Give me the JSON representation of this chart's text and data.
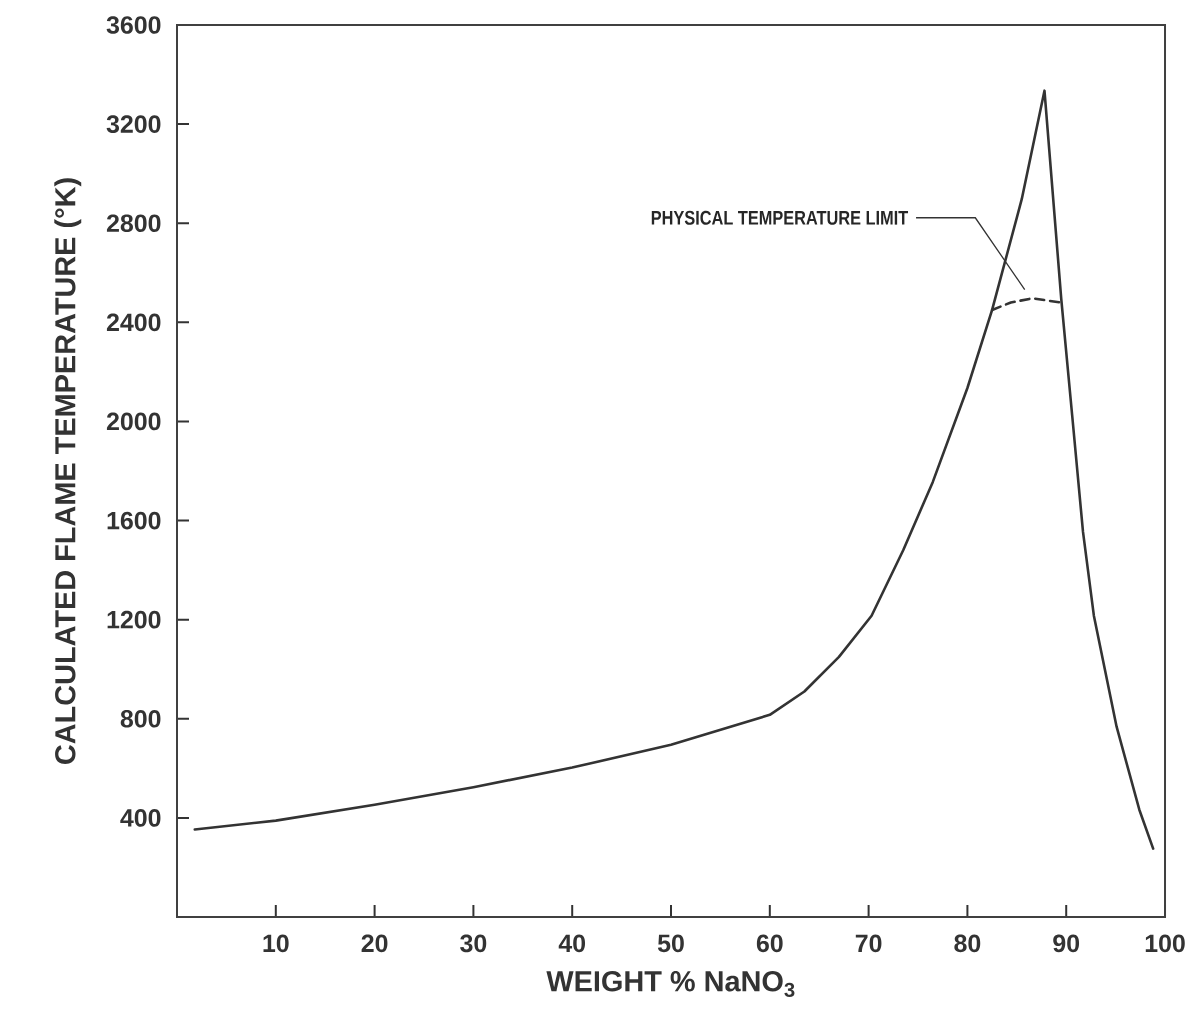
{
  "chart_data": {
    "type": "line",
    "xlabel": "WEIGHT % NaNO$_{3}$",
    "ylabel": "CALCULATED FLAME TEMPERATURE (°K)",
    "xlim": [
      0,
      100
    ],
    "ylim": [
      0,
      3600
    ],
    "xticks": [
      10,
      20,
      30,
      40,
      50,
      60,
      70,
      80,
      90,
      100
    ],
    "yticks": [
      400,
      800,
      1200,
      1600,
      2000,
      2400,
      2800,
      3200,
      3600
    ],
    "grid": false,
    "marker": "none",
    "series": [
      {
        "color": "#333333",
        "line_style": "solid",
        "x": [
          1.8,
          10,
          20,
          30,
          40,
          50,
          60,
          63.5,
          67,
          70.3,
          73.5,
          76.5,
          80,
          82.5,
          85.5,
          87.8,
          89.5,
          90.6,
          91.7,
          92.8,
          95.1,
          97.4,
          98.8
        ],
        "values": [
          353,
          389,
          453,
          524,
          603,
          695,
          816,
          910,
          1050,
          1216,
          1480,
          1756,
          2135,
          2450,
          2897,
          3335,
          2494,
          2026,
          1554,
          1216,
          768,
          433,
          276
        ]
      },
      {
        "color": "#333333",
        "line_style": "dashed",
        "x": [
          82.5,
          84.4,
          86.6,
          89.4
        ],
        "values": [
          2450,
          2480,
          2497,
          2480
        ]
      }
    ],
    "annotations": [
      "PHYSICAL TEMPERATURE LIMIT"
    ]
  }
}
